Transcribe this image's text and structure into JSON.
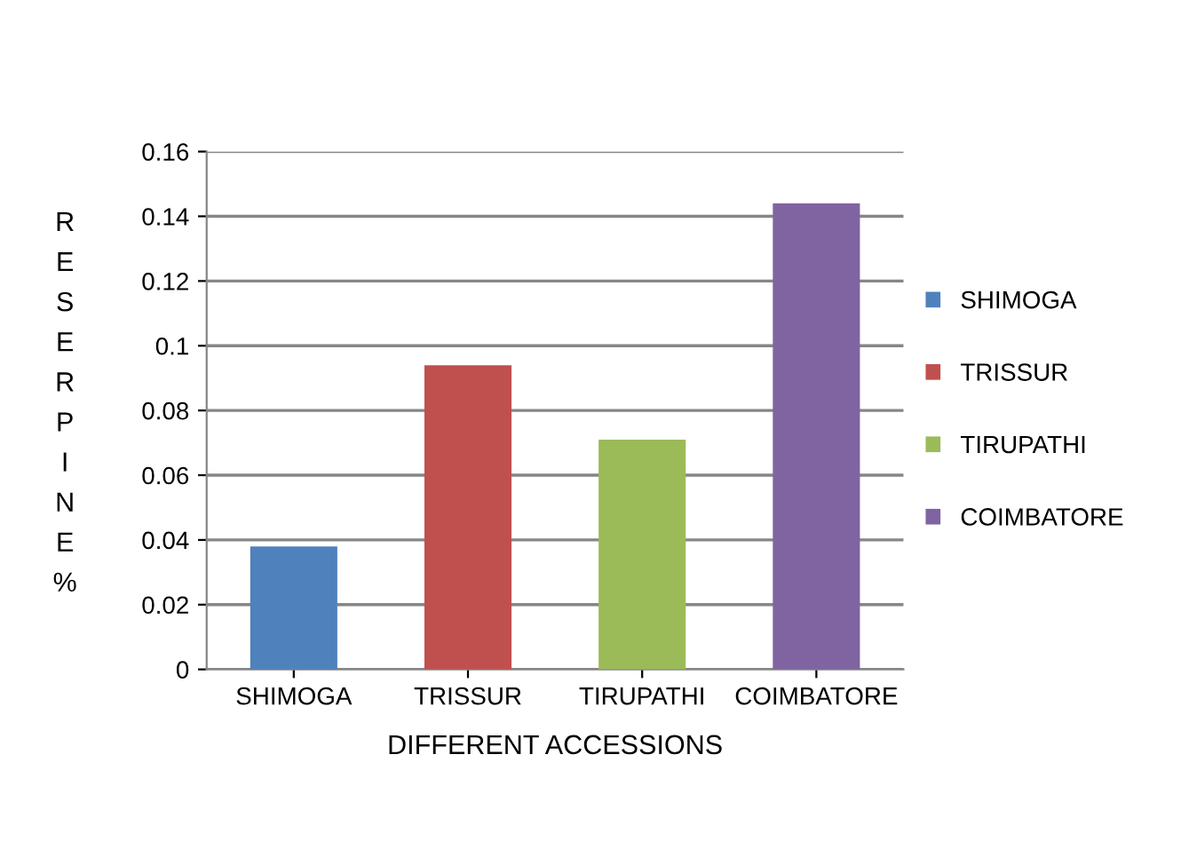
{
  "chart_data": {
    "type": "bar",
    "categories": [
      "SHIMOGA",
      "TRISSUR",
      "TIRUPATHI",
      "COIMBATORE"
    ],
    "series": [
      {
        "name": "SHIMOGA",
        "color": "#4f81bd",
        "values": [
          0.038,
          null,
          null,
          null
        ]
      },
      {
        "name": "TRISSUR",
        "color": "#c0504d",
        "values": [
          null,
          0.094,
          null,
          null
        ]
      },
      {
        "name": "TIRUPATHI",
        "color": "#9bbb59",
        "values": [
          null,
          null,
          0.071,
          null
        ]
      },
      {
        "name": "COIMBATORE",
        "color": "#8064a2",
        "values": [
          null,
          null,
          null,
          0.144
        ]
      }
    ],
    "xlabel": "DIFFERENT ACCESSIONS",
    "ylabel": "RESERPINE%",
    "ylim": [
      0,
      0.16
    ],
    "yticks": [
      0,
      0.02,
      0.04,
      0.06,
      0.08,
      0.1,
      0.12,
      0.14,
      0.16
    ],
    "grid": "y",
    "legend": "right"
  }
}
